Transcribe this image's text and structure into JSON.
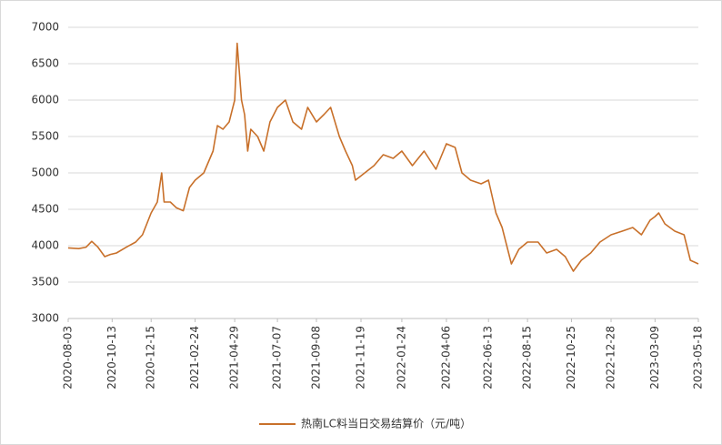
{
  "chart_data": {
    "type": "line",
    "x": [
      "2020-08-03",
      "2020-08-20",
      "2020-09-01",
      "2020-09-10",
      "2020-09-20",
      "2020-10-01",
      "2020-10-10",
      "2020-10-20",
      "2020-11-05",
      "2020-11-20",
      "2020-12-01",
      "2020-12-15",
      "2020-12-25",
      "2021-01-01",
      "2021-01-05",
      "2021-01-15",
      "2021-01-25",
      "2021-02-05",
      "2021-02-15",
      "2021-02-24",
      "2021-03-10",
      "2021-03-25",
      "2021-04-01",
      "2021-04-10",
      "2021-04-20",
      "2021-04-29",
      "2021-05-03",
      "2021-05-10",
      "2021-05-15",
      "2021-05-20",
      "2021-05-25",
      "2021-06-05",
      "2021-06-15",
      "2021-06-25",
      "2021-07-07",
      "2021-07-20",
      "2021-08-01",
      "2021-08-15",
      "2021-08-25",
      "2021-09-08",
      "2021-09-20",
      "2021-10-01",
      "2021-10-15",
      "2021-10-25",
      "2021-11-05",
      "2021-11-10",
      "2021-11-25",
      "2021-12-10",
      "2021-12-25",
      "2022-01-10",
      "2022-01-24",
      "2022-02-10",
      "2022-03-01",
      "2022-03-20",
      "2022-04-06",
      "2022-04-20",
      "2022-05-01",
      "2022-05-15",
      "2022-06-01",
      "2022-06-13",
      "2022-06-25",
      "2022-07-05",
      "2022-07-20",
      "2022-08-01",
      "2022-08-15",
      "2022-09-01",
      "2022-09-15",
      "2022-10-01",
      "2022-10-15",
      "2022-10-28",
      "2022-11-10",
      "2022-11-25",
      "2022-12-10",
      "2022-12-28",
      "2023-01-15",
      "2023-02-01",
      "2023-02-15",
      "2023-03-01",
      "2023-03-09",
      "2023-03-15",
      "2023-03-25",
      "2023-04-10",
      "2023-04-25",
      "2023-05-05",
      "2023-05-18"
    ],
    "series": [
      {
        "name": "热南LC料当日交易结算价（元/吨）",
        "color": "#c8702a",
        "values": [
          3970,
          3960,
          3980,
          4060,
          3980,
          3850,
          3880,
          3900,
          3980,
          4050,
          4150,
          4450,
          4600,
          5000,
          4600,
          4600,
          4520,
          4480,
          4800,
          4900,
          5000,
          5300,
          5650,
          5600,
          5700,
          6000,
          6780,
          6000,
          5800,
          5300,
          5600,
          5500,
          5300,
          5700,
          5900,
          6000,
          5700,
          5600,
          5900,
          5700,
          5800,
          5900,
          5500,
          5300,
          5100,
          4900,
          5000,
          5100,
          5250,
          5200,
          5300,
          5100,
          5300,
          5050,
          5400,
          5350,
          5000,
          4900,
          4850,
          4900,
          4450,
          4250,
          3750,
          3950,
          4050,
          4050,
          3900,
          3950,
          3850,
          3650,
          3800,
          3900,
          4050,
          4150,
          4200,
          4250,
          4150,
          4350,
          4400,
          4450,
          4300,
          4200,
          4150,
          3800,
          3750
        ]
      }
    ],
    "xlim": [
      "2020-08-03",
      "2023-05-18"
    ],
    "xticks": [
      "2020-08-03",
      "2020-10-13",
      "2020-12-15",
      "2021-02-24",
      "2021-04-29",
      "2021-07-07",
      "2021-09-08",
      "2021-11-19",
      "2022-01-24",
      "2022-04-06",
      "2022-06-13",
      "2022-08-15",
      "2022-10-25",
      "2022-12-28",
      "2023-03-09",
      "2023-05-18"
    ],
    "ylim": [
      3000,
      7000
    ],
    "yticks": [
      3000,
      3500,
      4000,
      4500,
      5000,
      5500,
      6000,
      6500,
      7000
    ],
    "grid": true,
    "legend": "bottom"
  }
}
